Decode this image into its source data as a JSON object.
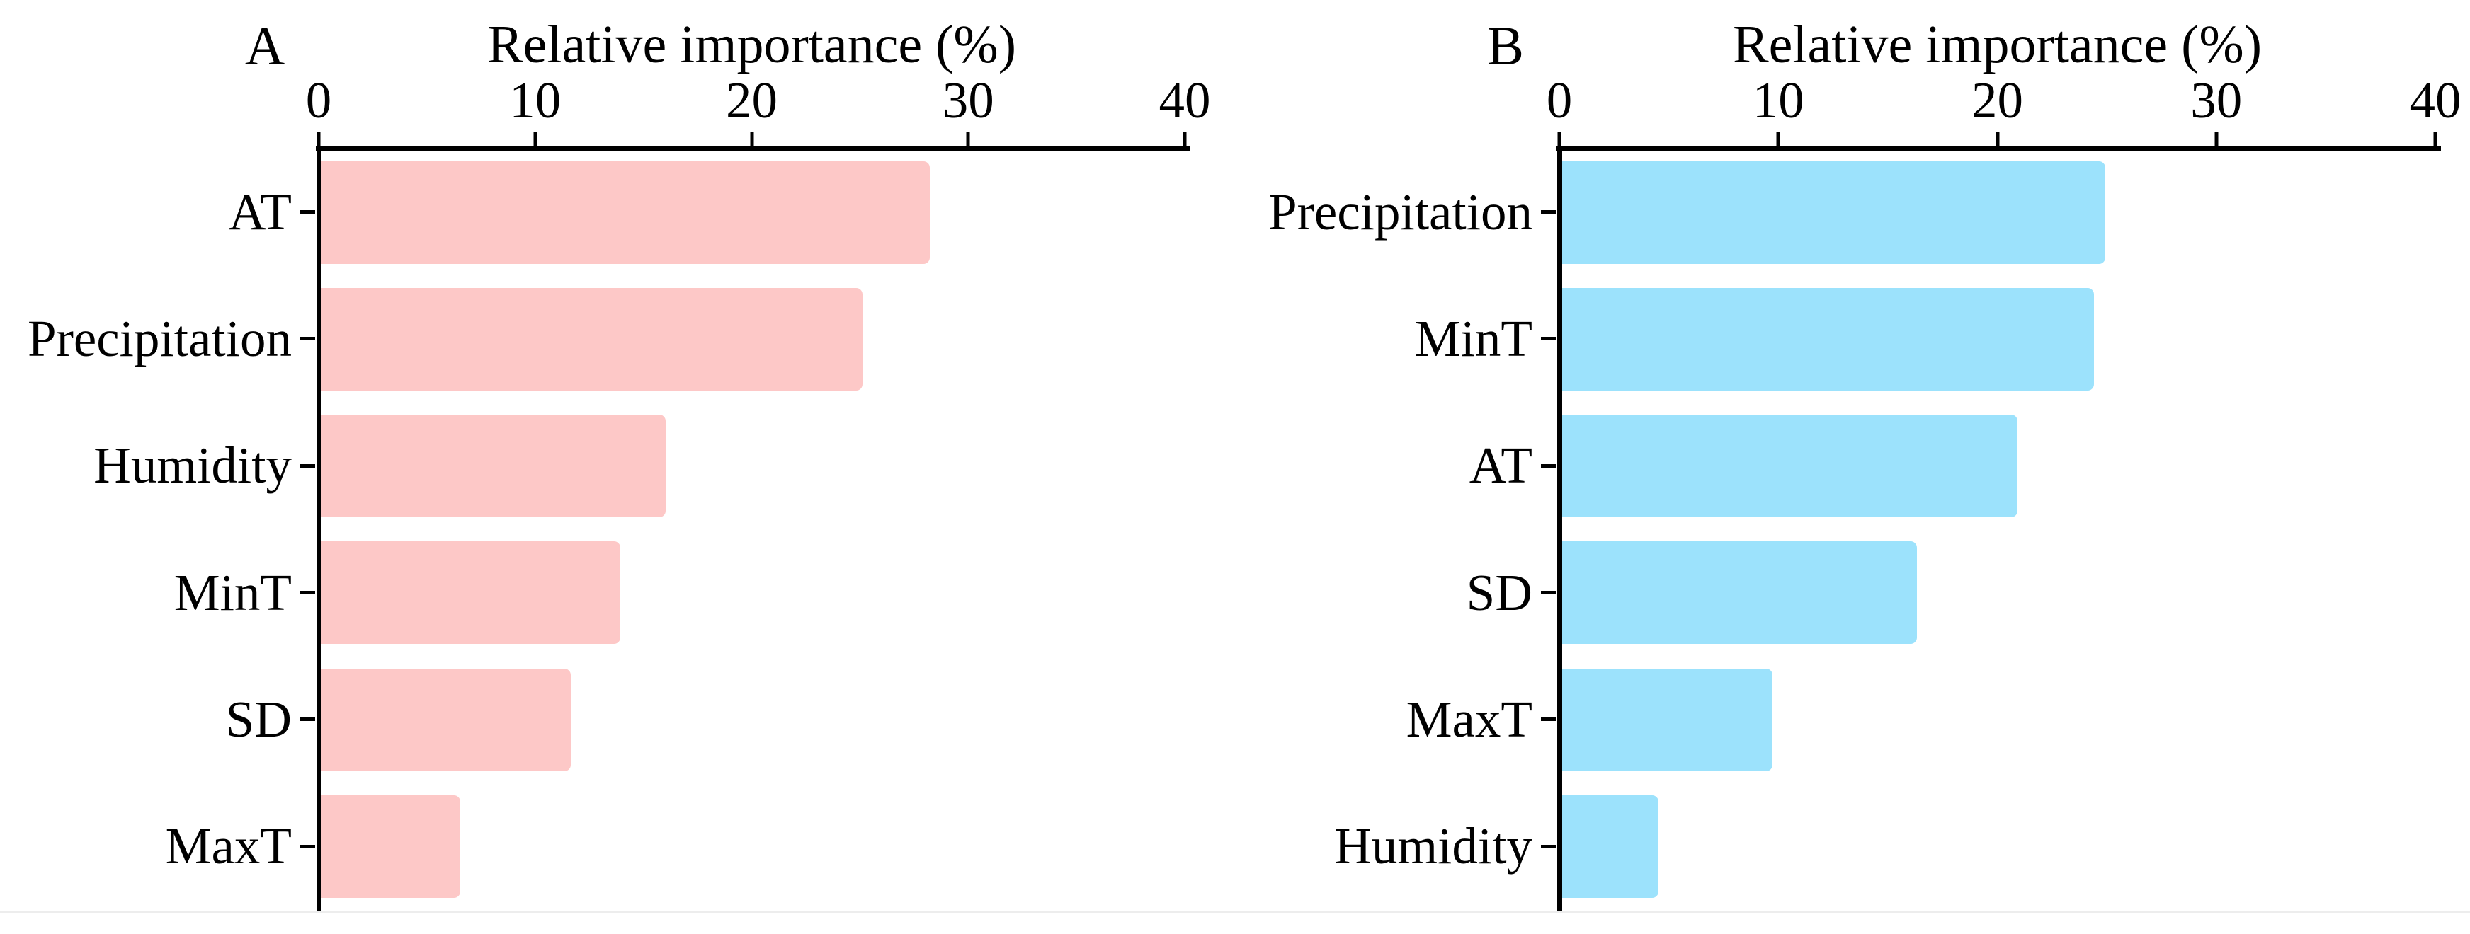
{
  "chart_data": [
    {
      "type": "bar",
      "orientation": "horizontal",
      "panel_label": "A",
      "title": "Relative importance (%)",
      "xlabel": "Relative importance (%)",
      "ylabel": "",
      "categories": [
        "AT",
        "Precipitation",
        "Humidity",
        "MinT",
        "SD",
        "MaxT"
      ],
      "values": [
        28.1,
        25.0,
        15.9,
        13.8,
        11.5,
        6.4
      ],
      "xlim": [
        0,
        40
      ],
      "x_ticks": [
        0,
        10,
        20,
        30,
        40
      ],
      "grid": false,
      "legend": "none",
      "bar_color": "#FDC8C7",
      "axis_color": "#000000"
    },
    {
      "type": "bar",
      "orientation": "horizontal",
      "panel_label": "B",
      "title": "Relative importance (%)",
      "xlabel": "Relative importance (%)",
      "ylabel": "",
      "categories": [
        "Precipitation",
        "MinT",
        "AT",
        "SD",
        "MaxT",
        "Humidity"
      ],
      "values": [
        24.8,
        24.3,
        20.8,
        16.2,
        9.6,
        4.4
      ],
      "xlim": [
        0,
        40
      ],
      "x_ticks": [
        0,
        10,
        20,
        30,
        40
      ],
      "grid": false,
      "legend": "none",
      "bar_color": "#9CE2FC",
      "axis_color": "#000000"
    }
  ]
}
